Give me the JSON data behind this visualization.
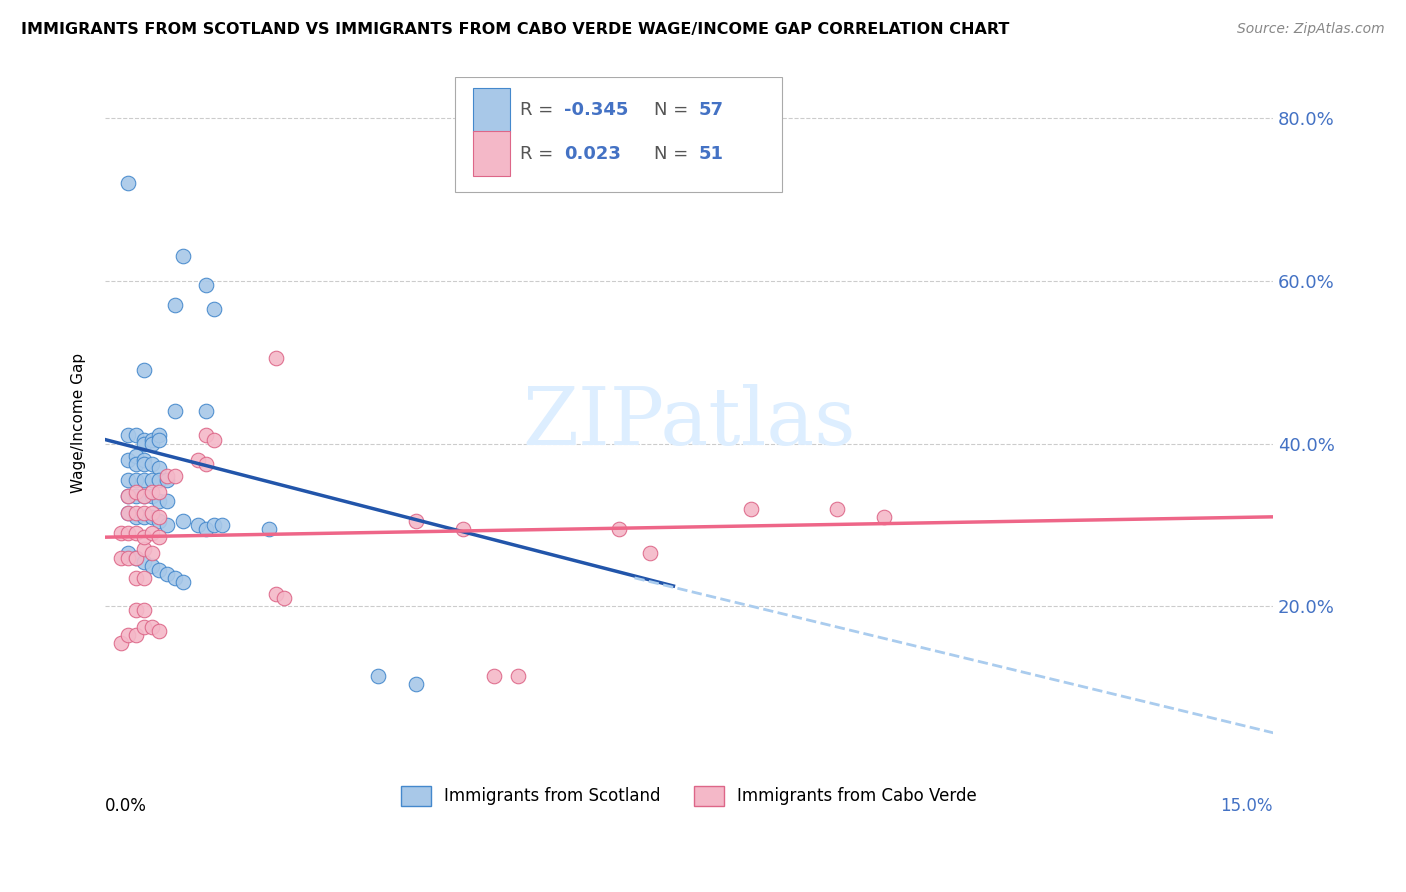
{
  "title": "IMMIGRANTS FROM SCOTLAND VS IMMIGRANTS FROM CABO VERDE WAGE/INCOME GAP CORRELATION CHART",
  "source": "Source: ZipAtlas.com",
  "ylabel": "Wage/Income Gap",
  "scotland_color": "#a8c8e8",
  "caboverde_color": "#f4b8c8",
  "scotland_edge_color": "#4488cc",
  "caboverde_edge_color": "#dd6688",
  "scotland_line_color": "#2255aa",
  "caboverde_line_color": "#ee6688",
  "dashed_line_color": "#aaccee",
  "watermark_color": "#ddeeff",
  "scotland_dots": [
    [
      0.003,
      0.72
    ],
    [
      0.01,
      0.63
    ],
    [
      0.013,
      0.595
    ],
    [
      0.009,
      0.57
    ],
    [
      0.014,
      0.565
    ],
    [
      0.005,
      0.49
    ],
    [
      0.009,
      0.44
    ],
    [
      0.013,
      0.44
    ],
    [
      0.003,
      0.41
    ],
    [
      0.004,
      0.41
    ],
    [
      0.005,
      0.405
    ],
    [
      0.005,
      0.4
    ],
    [
      0.006,
      0.405
    ],
    [
      0.006,
      0.4
    ],
    [
      0.007,
      0.41
    ],
    [
      0.007,
      0.405
    ],
    [
      0.003,
      0.38
    ],
    [
      0.004,
      0.385
    ],
    [
      0.004,
      0.375
    ],
    [
      0.005,
      0.38
    ],
    [
      0.005,
      0.375
    ],
    [
      0.006,
      0.375
    ],
    [
      0.007,
      0.37
    ],
    [
      0.003,
      0.355
    ],
    [
      0.004,
      0.355
    ],
    [
      0.005,
      0.355
    ],
    [
      0.006,
      0.355
    ],
    [
      0.007,
      0.355
    ],
    [
      0.008,
      0.355
    ],
    [
      0.003,
      0.335
    ],
    [
      0.004,
      0.335
    ],
    [
      0.005,
      0.335
    ],
    [
      0.006,
      0.335
    ],
    [
      0.007,
      0.33
    ],
    [
      0.008,
      0.33
    ],
    [
      0.003,
      0.315
    ],
    [
      0.004,
      0.31
    ],
    [
      0.005,
      0.31
    ],
    [
      0.006,
      0.31
    ],
    [
      0.007,
      0.305
    ],
    [
      0.008,
      0.3
    ],
    [
      0.01,
      0.305
    ],
    [
      0.012,
      0.3
    ],
    [
      0.013,
      0.295
    ],
    [
      0.014,
      0.3
    ],
    [
      0.015,
      0.3
    ],
    [
      0.021,
      0.295
    ],
    [
      0.003,
      0.265
    ],
    [
      0.004,
      0.26
    ],
    [
      0.005,
      0.255
    ],
    [
      0.006,
      0.25
    ],
    [
      0.007,
      0.245
    ],
    [
      0.008,
      0.24
    ],
    [
      0.009,
      0.235
    ],
    [
      0.01,
      0.23
    ],
    [
      0.035,
      0.115
    ],
    [
      0.04,
      0.105
    ]
  ],
  "caboverde_dots": [
    [
      0.002,
      0.155
    ],
    [
      0.004,
      0.195
    ],
    [
      0.005,
      0.195
    ],
    [
      0.004,
      0.235
    ],
    [
      0.005,
      0.235
    ],
    [
      0.002,
      0.26
    ],
    [
      0.003,
      0.26
    ],
    [
      0.004,
      0.26
    ],
    [
      0.005,
      0.27
    ],
    [
      0.006,
      0.265
    ],
    [
      0.002,
      0.29
    ],
    [
      0.003,
      0.29
    ],
    [
      0.004,
      0.29
    ],
    [
      0.005,
      0.285
    ],
    [
      0.006,
      0.29
    ],
    [
      0.007,
      0.285
    ],
    [
      0.003,
      0.315
    ],
    [
      0.004,
      0.315
    ],
    [
      0.005,
      0.315
    ],
    [
      0.006,
      0.315
    ],
    [
      0.007,
      0.31
    ],
    [
      0.003,
      0.335
    ],
    [
      0.004,
      0.34
    ],
    [
      0.005,
      0.335
    ],
    [
      0.006,
      0.34
    ],
    [
      0.007,
      0.34
    ],
    [
      0.008,
      0.36
    ],
    [
      0.009,
      0.36
    ],
    [
      0.012,
      0.38
    ],
    [
      0.013,
      0.375
    ],
    [
      0.013,
      0.41
    ],
    [
      0.014,
      0.405
    ],
    [
      0.022,
      0.505
    ],
    [
      0.04,
      0.305
    ],
    [
      0.046,
      0.295
    ],
    [
      0.05,
      0.115
    ],
    [
      0.053,
      0.115
    ],
    [
      0.066,
      0.295
    ],
    [
      0.07,
      0.265
    ],
    [
      0.083,
      0.32
    ],
    [
      0.094,
      0.32
    ],
    [
      0.1,
      0.31
    ],
    [
      0.003,
      0.165
    ],
    [
      0.004,
      0.165
    ],
    [
      0.005,
      0.175
    ],
    [
      0.006,
      0.175
    ],
    [
      0.007,
      0.17
    ],
    [
      0.022,
      0.215
    ],
    [
      0.023,
      0.21
    ]
  ],
  "xlim": [
    0,
    0.15
  ],
  "ylim": [
    0,
    0.85
  ],
  "yticks": [
    0.2,
    0.4,
    0.6,
    0.8
  ],
  "ytick_labels": [
    "20.0%",
    "40.0%",
    "60.0%",
    "80.0%"
  ],
  "scotland_line_x": [
    0.0,
    0.073
  ],
  "scotland_line_y": [
    0.405,
    0.225
  ],
  "caboverde_line_x": [
    0.0,
    0.15
  ],
  "caboverde_line_y": [
    0.285,
    0.31
  ],
  "dashed_line_x": [
    0.068,
    0.152
  ],
  "dashed_line_y": [
    0.235,
    0.04
  ]
}
